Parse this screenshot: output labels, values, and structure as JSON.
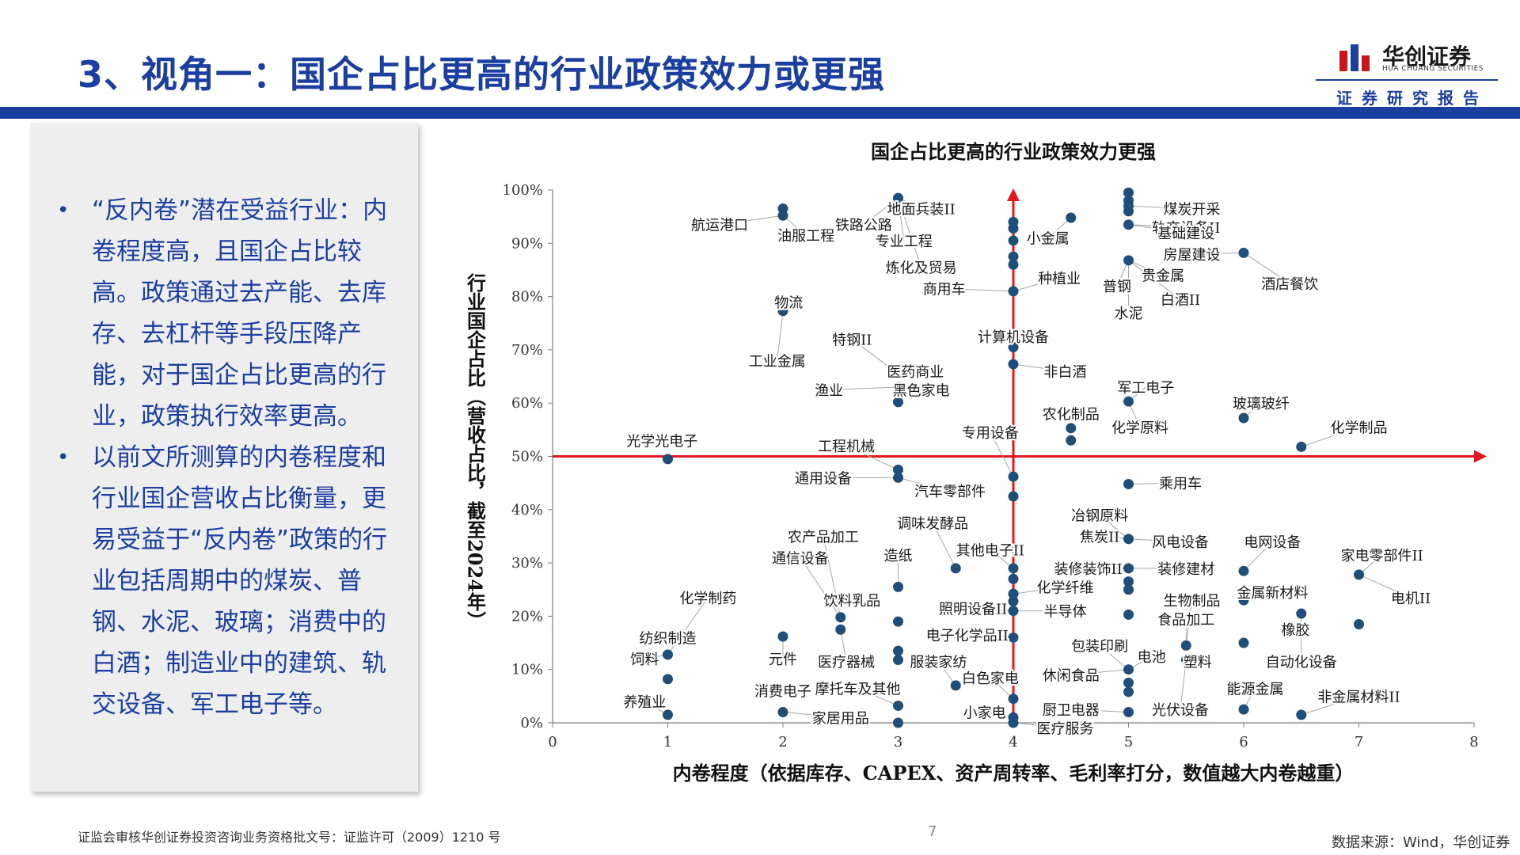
{
  "header": {
    "title": "3、视角一：国企占比更高的行业政策效力或更强",
    "logo_cn": "华创证券",
    "logo_en": "HUA CHUANG SECURITIES",
    "report_label": "证券研究报告"
  },
  "panel": {
    "bullets": [
      "“反内卷”潜在受益行业：内卷程度高，且国企占比较高。政策通过去产能、去库存、去杠杆等手段压降产能，对于国企占比更高的行业，政策执行效率更高。",
      "以前文所测算的内卷程度和行业国企营收占比衡量，更易受益于“反内卷”政策的行业包括周期中的煤炭、普钢、水泥、玻璃；消费中的白酒；制造业中的建筑、轨交设备、军工电子等。"
    ]
  },
  "footer": {
    "license": "证监会审核华创证券投资咨询业务资格批文号：证监许可（2009）1210 号",
    "page": "7",
    "source": "数据来源：Wind，华创证券"
  },
  "colors": {
    "brand_blue": "#1a3fa0",
    "point": "#1f4e79",
    "axis_red": "#e3171d",
    "logo_red": "#c8161d"
  },
  "chart_data": {
    "type": "scatter",
    "title": "国企占比更高的行业政策效力更强",
    "xlabel": "内卷程度（依据库存、CAPEX、资产周转率、毛利率打分，数值越大内卷越重）",
    "ylabel": "行业国企占比（营收占比，截至2024年）",
    "xlim": [
      0,
      8
    ],
    "ylim": [
      0,
      1
    ],
    "x_ticks": [
      "0",
      "1",
      "2",
      "3",
      "4",
      "5",
      "6",
      "7",
      "8"
    ],
    "y_ticks": [
      "0%",
      "10%",
      "20%",
      "30%",
      "40%",
      "50%",
      "60%",
      "70%",
      "80%",
      "90%",
      "100%"
    ],
    "quadrant_lines": {
      "x": 4,
      "y": 0.5
    },
    "labels": [
      {
        "text": "煤炭开采",
        "lx": 5.55,
        "ly": 0.965
      },
      {
        "text": "轨交设备II",
        "lx": 5.5,
        "ly": 0.93
      },
      {
        "text": "基础建设",
        "lx": 5.5,
        "ly": 0.92
      },
      {
        "text": "房屋建设",
        "lx": 5.55,
        "ly": 0.88
      },
      {
        "text": "贵金属",
        "lx": 5.3,
        "ly": 0.84
      },
      {
        "text": "普钢",
        "lx": 4.9,
        "ly": 0.82
      },
      {
        "text": "白酒II",
        "lx": 5.45,
        "ly": 0.795
      },
      {
        "text": "水泥",
        "lx": 5.0,
        "ly": 0.77
      },
      {
        "text": "酒店餐饮",
        "lx": 6.4,
        "ly": 0.825
      },
      {
        "text": "航运港口",
        "lx": 1.45,
        "ly": 0.935
      },
      {
        "text": "油服工程",
        "lx": 2.2,
        "ly": 0.915
      },
      {
        "text": "铁路公路",
        "lx": 2.7,
        "ly": 0.935
      },
      {
        "text": "地面兵装II",
        "lx": 3.2,
        "ly": 0.965
      },
      {
        "text": "专业工程",
        "lx": 3.05,
        "ly": 0.905
      },
      {
        "text": "小金属",
        "lx": 4.3,
        "ly": 0.91
      },
      {
        "text": "炼化及贸易",
        "lx": 3.2,
        "ly": 0.855
      },
      {
        "text": "种植业",
        "lx": 4.4,
        "ly": 0.835
      },
      {
        "text": "商用车",
        "lx": 3.4,
        "ly": 0.815
      },
      {
        "text": "物流",
        "lx": 2.05,
        "ly": 0.79
      },
      {
        "text": "特钢II",
        "lx": 2.6,
        "ly": 0.72
      },
      {
        "text": "计算机设备",
        "lx": 4.0,
        "ly": 0.725
      },
      {
        "text": "非白酒",
        "lx": 4.45,
        "ly": 0.66
      },
      {
        "text": "工业金属",
        "lx": 1.95,
        "ly": 0.68
      },
      {
        "text": "医药商业",
        "lx": 3.15,
        "ly": 0.66
      },
      {
        "text": "渔业",
        "lx": 2.4,
        "ly": 0.625
      },
      {
        "text": "黑色家电",
        "lx": 3.2,
        "ly": 0.625
      },
      {
        "text": "军工电子",
        "lx": 5.15,
        "ly": 0.63
      },
      {
        "text": "玻璃玻纤",
        "lx": 6.15,
        "ly": 0.6
      },
      {
        "text": "农化制品",
        "lx": 4.5,
        "ly": 0.58
      },
      {
        "text": "化学原料",
        "lx": 5.1,
        "ly": 0.555
      },
      {
        "text": "化学制品",
        "lx": 7.0,
        "ly": 0.555
      },
      {
        "text": "专用设备",
        "lx": 3.8,
        "ly": 0.545
      },
      {
        "text": "光学光电子",
        "lx": 0.95,
        "ly": 0.53
      },
      {
        "text": "工程机械",
        "lx": 2.55,
        "ly": 0.52
      },
      {
        "text": "通用设备",
        "lx": 2.35,
        "ly": 0.46
      },
      {
        "text": "汽车零部件",
        "lx": 3.45,
        "ly": 0.435
      },
      {
        "text": "乘用车",
        "lx": 5.45,
        "ly": 0.45
      },
      {
        "text": "冶钢原料",
        "lx": 4.75,
        "ly": 0.39
      },
      {
        "text": "调味发酵品",
        "lx": 3.3,
        "ly": 0.375
      },
      {
        "text": "农产品加工",
        "lx": 2.35,
        "ly": 0.35
      },
      {
        "text": "焦炭II",
        "lx": 4.75,
        "ly": 0.35
      },
      {
        "text": "风电设备",
        "lx": 5.45,
        "ly": 0.34
      },
      {
        "text": "电网设备",
        "lx": 6.25,
        "ly": 0.34
      },
      {
        "text": "家电零部件II",
        "lx": 7.2,
        "ly": 0.315
      },
      {
        "text": "通信设备",
        "lx": 2.15,
        "ly": 0.31
      },
      {
        "text": "造纸",
        "lx": 3.0,
        "ly": 0.315
      },
      {
        "text": "其他电子II",
        "lx": 3.8,
        "ly": 0.325
      },
      {
        "text": "装修装饰II",
        "lx": 4.65,
        "ly": 0.29
      },
      {
        "text": "装修建材",
        "lx": 5.5,
        "ly": 0.29
      },
      {
        "text": "化学纤维",
        "lx": 4.45,
        "ly": 0.255
      },
      {
        "text": "金属新材料",
        "lx": 6.25,
        "ly": 0.245
      },
      {
        "text": "电机II",
        "lx": 7.45,
        "ly": 0.235
      },
      {
        "text": "化学制药",
        "lx": 1.35,
        "ly": 0.235
      },
      {
        "text": "饮料乳品",
        "lx": 2.6,
        "ly": 0.23
      },
      {
        "text": "照明设备II",
        "lx": 3.65,
        "ly": 0.215
      },
      {
        "text": "生物制品",
        "lx": 5.55,
        "ly": 0.23
      },
      {
        "text": "半导体",
        "lx": 4.45,
        "ly": 0.21
      },
      {
        "text": "食品加工",
        "lx": 5.5,
        "ly": 0.195
      },
      {
        "text": "橡胶",
        "lx": 6.45,
        "ly": 0.175
      },
      {
        "text": "纺织制造",
        "lx": 1.0,
        "ly": 0.16
      },
      {
        "text": "电子化学品II",
        "lx": 3.6,
        "ly": 0.165
      },
      {
        "text": "包装印刷",
        "lx": 4.75,
        "ly": 0.145
      },
      {
        "text": "饲料",
        "lx": 0.8,
        "ly": 0.12
      },
      {
        "text": "元件",
        "lx": 2.0,
        "ly": 0.12
      },
      {
        "text": "医疗器械",
        "lx": 2.55,
        "ly": 0.115
      },
      {
        "text": "服装家纺",
        "lx": 3.35,
        "ly": 0.115
      },
      {
        "text": "电池",
        "lx": 5.2,
        "ly": 0.125
      },
      {
        "text": "塑料",
        "lx": 5.6,
        "ly": 0.115
      },
      {
        "text": "自动化设备",
        "lx": 6.5,
        "ly": 0.115
      },
      {
        "text": "休闲食品",
        "lx": 4.5,
        "ly": 0.09
      },
      {
        "text": "白色家电",
        "lx": 3.8,
        "ly": 0.085
      },
      {
        "text": "摩托车及其他",
        "lx": 2.65,
        "ly": 0.065
      },
      {
        "text": "消费电子",
        "lx": 2.0,
        "ly": 0.06
      },
      {
        "text": "能源金属",
        "lx": 6.1,
        "ly": 0.065
      },
      {
        "text": "非金属材料II",
        "lx": 7.0,
        "ly": 0.05
      },
      {
        "text": "养殖业",
        "lx": 0.8,
        "ly": 0.04
      },
      {
        "text": "厨卫电器",
        "lx": 4.5,
        "ly": 0.025
      },
      {
        "text": "小家电",
        "lx": 3.75,
        "ly": 0.02
      },
      {
        "text": "光伏设备",
        "lx": 5.45,
        "ly": 0.025
      },
      {
        "text": "家居用品",
        "lx": 2.5,
        "ly": 0.01
      },
      {
        "text": "医疗服务",
        "lx": 4.45,
        "ly": -0.01
      }
    ],
    "points": [
      {
        "x": 5.0,
        "y": 0.995
      },
      {
        "x": 5.0,
        "y": 0.98
      },
      {
        "x": 5.0,
        "y": 0.97
      },
      {
        "x": 5.0,
        "y": 0.96
      },
      {
        "x": 5.0,
        "y": 0.935
      },
      {
        "x": 5.0,
        "y": 0.868
      },
      {
        "x": 6.0,
        "y": 0.882
      },
      {
        "x": 4.5,
        "y": 0.948
      },
      {
        "x": 2.0,
        "y": 0.965
      },
      {
        "x": 2.0,
        "y": 0.952
      },
      {
        "x": 3.0,
        "y": 0.985
      },
      {
        "x": 4.0,
        "y": 0.94
      },
      {
        "x": 4.0,
        "y": 0.928
      },
      {
        "x": 4.0,
        "y": 0.905
      },
      {
        "x": 4.0,
        "y": 0.875
      },
      {
        "x": 4.0,
        "y": 0.86
      },
      {
        "x": 4.0,
        "y": 0.81
      },
      {
        "x": 2.0,
        "y": 0.773
      },
      {
        "x": 4.0,
        "y": 0.705
      },
      {
        "x": 4.0,
        "y": 0.673
      },
      {
        "x": 3.0,
        "y": 0.655
      },
      {
        "x": 3.0,
        "y": 0.63
      },
      {
        "x": 3.0,
        "y": 0.602
      },
      {
        "x": 5.0,
        "y": 0.603
      },
      {
        "x": 6.0,
        "y": 0.572
      },
      {
        "x": 4.5,
        "y": 0.553
      },
      {
        "x": 4.5,
        "y": 0.53
      },
      {
        "x": 6.5,
        "y": 0.518
      },
      {
        "x": 1.0,
        "y": 0.495
      },
      {
        "x": 3.0,
        "y": 0.475
      },
      {
        "x": 3.0,
        "y": 0.46
      },
      {
        "x": 4.0,
        "y": 0.462
      },
      {
        "x": 4.0,
        "y": 0.425
      },
      {
        "x": 5.0,
        "y": 0.448
      },
      {
        "x": 5.0,
        "y": 0.345
      },
      {
        "x": 3.5,
        "y": 0.29
      },
      {
        "x": 4.0,
        "y": 0.29
      },
      {
        "x": 5.0,
        "y": 0.29
      },
      {
        "x": 6.0,
        "y": 0.285
      },
      {
        "x": 7.0,
        "y": 0.278
      },
      {
        "x": 4.0,
        "y": 0.27
      },
      {
        "x": 5.0,
        "y": 0.265
      },
      {
        "x": 3.0,
        "y": 0.255
      },
      {
        "x": 5.0,
        "y": 0.25
      },
      {
        "x": 4.0,
        "y": 0.242
      },
      {
        "x": 6.0,
        "y": 0.23
      },
      {
        "x": 4.0,
        "y": 0.228
      },
      {
        "x": 4.0,
        "y": 0.21
      },
      {
        "x": 5.0,
        "y": 0.203
      },
      {
        "x": 6.5,
        "y": 0.205
      },
      {
        "x": 2.5,
        "y": 0.198
      },
      {
        "x": 3.0,
        "y": 0.19
      },
      {
        "x": 7.0,
        "y": 0.185
      },
      {
        "x": 2.5,
        "y": 0.175
      },
      {
        "x": 2.0,
        "y": 0.162
      },
      {
        "x": 4.0,
        "y": 0.16
      },
      {
        "x": 6.0,
        "y": 0.15
      },
      {
        "x": 5.5,
        "y": 0.145
      },
      {
        "x": 1.0,
        "y": 0.128
      },
      {
        "x": 3.0,
        "y": 0.135
      },
      {
        "x": 3.0,
        "y": 0.118
      },
      {
        "x": 5.5,
        "y": 0.118
      },
      {
        "x": 5.0,
        "y": 0.1
      },
      {
        "x": 1.0,
        "y": 0.082
      },
      {
        "x": 5.0,
        "y": 0.075
      },
      {
        "x": 3.5,
        "y": 0.07
      },
      {
        "x": 5.0,
        "y": 0.058
      },
      {
        "x": 4.0,
        "y": 0.045
      },
      {
        "x": 3.0,
        "y": 0.032
      },
      {
        "x": 6.0,
        "y": 0.025
      },
      {
        "x": 2.0,
        "y": 0.02
      },
      {
        "x": 5.0,
        "y": 0.02
      },
      {
        "x": 1.0,
        "y": 0.015
      },
      {
        "x": 6.5,
        "y": 0.015
      },
      {
        "x": 4.0,
        "y": 0.01
      },
      {
        "x": 3.0,
        "y": 0.0
      },
      {
        "x": 4.0,
        "y": 0.0
      }
    ]
  }
}
